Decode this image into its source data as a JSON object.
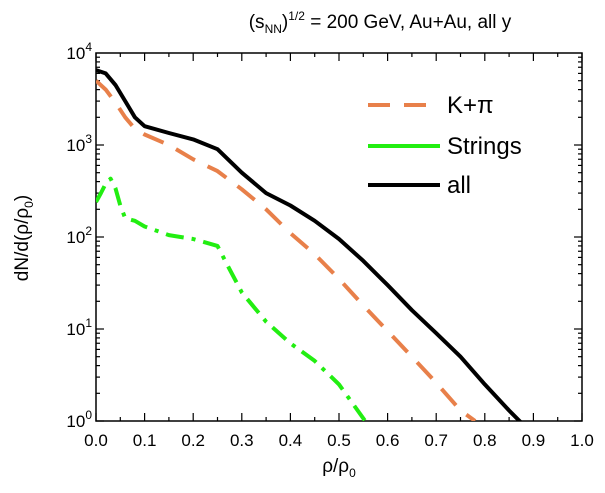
{
  "chart_data": {
    "type": "line",
    "title": "(s_NN)^1/2 = 200 GeV, Au+Au, all y",
    "title_parts": {
      "open": "(s",
      "sub": "NN",
      "close": ")",
      "sup": "1/2",
      "rest": " = 200 GeV, Au+Au, all y"
    },
    "xlabel": "ρ/ρ0",
    "xlabel_parts": {
      "main": "ρ/ρ",
      "sub": "0"
    },
    "ylabel": "dN/d(ρ/ρ0)",
    "ylabel_parts": {
      "main": "dN/d(ρ/ρ",
      "sub": "0",
      "close": ")"
    },
    "xlim": [
      0.0,
      1.0
    ],
    "ylim": [
      1,
      10000
    ],
    "yscale": "log",
    "x_ticks": [
      "0.0",
      "0.1",
      "0.2",
      "0.3",
      "0.4",
      "0.5",
      "0.6",
      "0.7",
      "0.8",
      "0.9",
      "1.0"
    ],
    "y_ticks": [
      {
        "base": "10",
        "exp": "0"
      },
      {
        "base": "10",
        "exp": "1"
      },
      {
        "base": "10",
        "exp": "2"
      },
      {
        "base": "10",
        "exp": "3"
      },
      {
        "base": "10",
        "exp": "4"
      }
    ],
    "legend_position": "top-right",
    "series": [
      {
        "name": "K+π",
        "color": "#e8804a",
        "style": "dashed",
        "x": [
          0.0,
          0.02,
          0.04,
          0.06,
          0.08,
          0.1,
          0.15,
          0.2,
          0.25,
          0.3,
          0.35,
          0.4,
          0.45,
          0.5,
          0.55,
          0.6,
          0.65,
          0.7,
          0.75,
          0.78
        ],
        "y": [
          5000,
          4000,
          2900,
          2000,
          1500,
          1300,
          1000,
          700,
          520,
          330,
          200,
          110,
          65,
          35,
          18,
          9.5,
          5,
          2.6,
          1.3,
          1.0
        ]
      },
      {
        "name": "Strings",
        "color": "#22ee11",
        "style": "dash-dot",
        "x": [
          0.0,
          0.01,
          0.02,
          0.03,
          0.04,
          0.05,
          0.06,
          0.08,
          0.1,
          0.15,
          0.2,
          0.25,
          0.27,
          0.3,
          0.35,
          0.4,
          0.45,
          0.5,
          0.53,
          0.56
        ],
        "y": [
          240,
          300,
          380,
          430,
          340,
          220,
          160,
          150,
          130,
          105,
          95,
          80,
          50,
          25,
          12,
          7,
          4.5,
          2.5,
          1.5,
          0.9
        ]
      },
      {
        "name": "all",
        "color": "#000000",
        "style": "solid",
        "x": [
          0.0,
          0.02,
          0.04,
          0.06,
          0.08,
          0.1,
          0.15,
          0.2,
          0.25,
          0.3,
          0.35,
          0.4,
          0.45,
          0.5,
          0.55,
          0.6,
          0.65,
          0.7,
          0.75,
          0.8,
          0.85,
          0.88
        ],
        "y": [
          6500,
          6000,
          4500,
          3000,
          2000,
          1600,
          1350,
          1150,
          900,
          500,
          300,
          220,
          150,
          95,
          55,
          30,
          16,
          9,
          5,
          2.5,
          1.3,
          0.9
        ]
      }
    ]
  }
}
